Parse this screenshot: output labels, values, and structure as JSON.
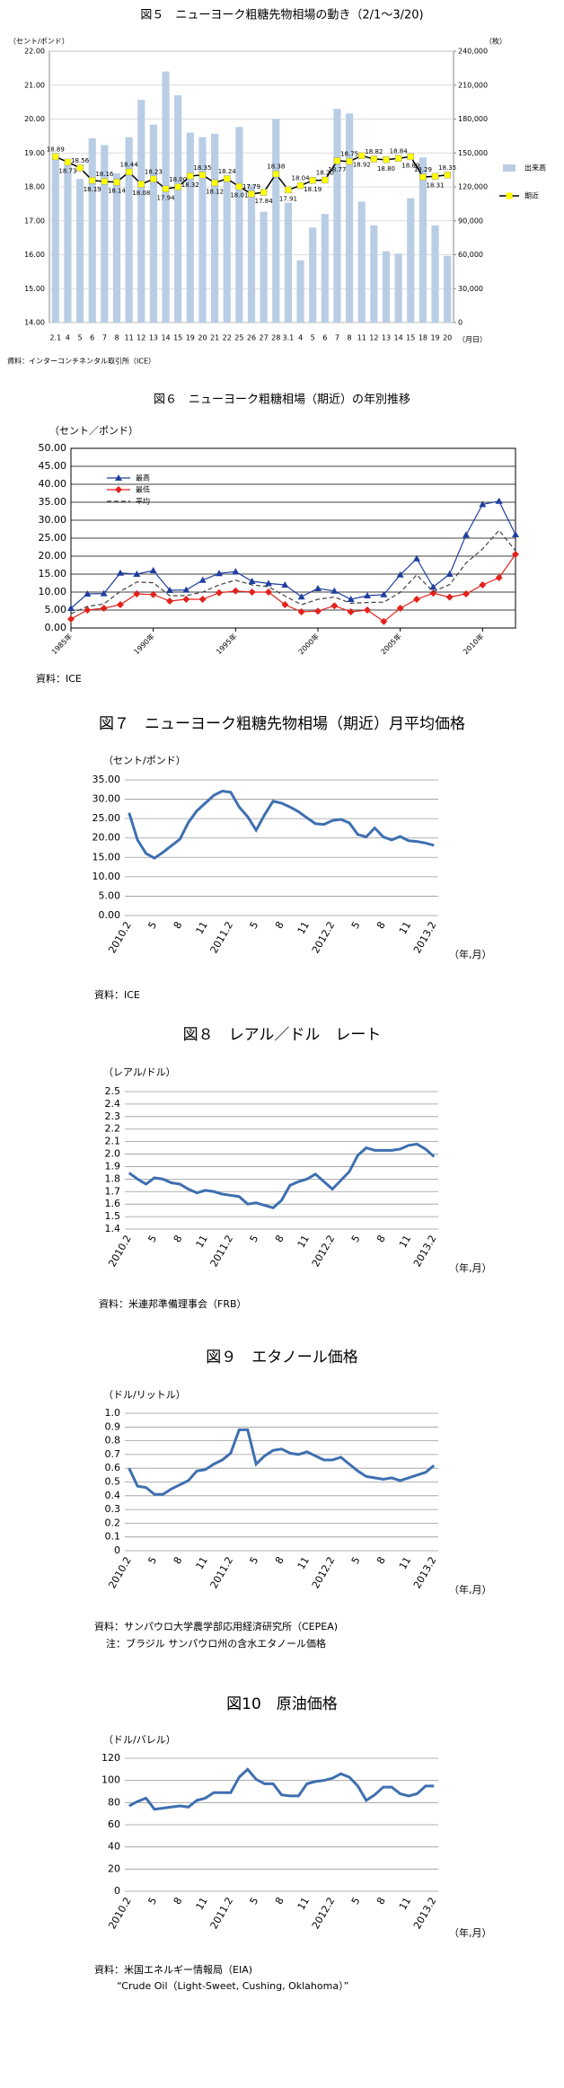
{
  "chart_data": [
    {
      "type": "combo",
      "title": "図５　ニューヨーク粗糖先物相場の動き（2/1～3/20)",
      "y_label": "（セント/ポンド）",
      "y2_label": "（枚）",
      "x_label": "（月日）",
      "categories": [
        "2.1",
        "4",
        "5",
        "6",
        "7",
        "8",
        "11",
        "12",
        "13",
        "14",
        "15",
        "19",
        "20",
        "21",
        "22",
        "25",
        "26",
        "27",
        "28",
        "3.1",
        "4",
        "5",
        "6",
        "7",
        "8",
        "11",
        "12",
        "13",
        "14",
        "15",
        "18",
        "19",
        "20"
      ],
      "series": [
        {
          "name": "出来高",
          "type": "bar",
          "axis": "y2",
          "color": "#b9cde5",
          "values": [
            147000,
            140000,
            127000,
            163000,
            157000,
            132000,
            164000,
            197000,
            175000,
            222000,
            201000,
            168000,
            164000,
            167000,
            127000,
            173000,
            122000,
            98000,
            180000,
            106000,
            55000,
            84000,
            96000,
            189000,
            185000,
            107000,
            86000,
            63000,
            61000,
            110000,
            146000,
            86000,
            59000
          ]
        },
        {
          "name": "期近",
          "type": "line",
          "color": "#000000",
          "marker_color": "#ffff00",
          "values": [
            18.89,
            18.73,
            18.56,
            18.19,
            18.16,
            18.14,
            18.44,
            18.08,
            18.23,
            17.94,
            18.0,
            18.32,
            18.35,
            18.12,
            18.24,
            18.01,
            17.79,
            17.84,
            18.38,
            17.91,
            18.04,
            18.19,
            18.2,
            18.77,
            18.75,
            18.92,
            18.82,
            18.8,
            18.84,
            18.89,
            18.29,
            18.31,
            18.35
          ],
          "value_labels": [
            "18.89",
            "18.73",
            "18.56",
            "18.19",
            "18.16",
            "18.14",
            "18.44",
            "18.08",
            "18.23",
            "17.94",
            "18.00",
            "18.32",
            "18.35",
            "18.12",
            "18.24",
            "18.01",
            "17.79",
            "17.84",
            "18.38",
            "17.91",
            "18.04",
            "18.19",
            "18.20",
            "18.77",
            "18.75",
            "18.92",
            "18.82",
            "18.80",
            "18.84",
            "18.89",
            "18.29",
            "18.31",
            "18.35"
          ]
        }
      ],
      "ylim": [
        14,
        22
      ],
      "yticks": [
        {
          "value": 14,
          "label": "14.00"
        },
        {
          "value": 15,
          "label": "15.00"
        },
        {
          "value": 16,
          "label": "16.00"
        },
        {
          "value": 17,
          "label": "17.00"
        },
        {
          "value": 18,
          "label": "18.00"
        },
        {
          "value": 19,
          "label": "19.00"
        },
        {
          "value": 20,
          "label": "20.00"
        },
        {
          "value": 21,
          "label": "21.00"
        },
        {
          "value": 22,
          "label": "22.00"
        }
      ],
      "y2lim": [
        0,
        240000
      ],
      "y2ticks": [
        0,
        {
          "value": 30000,
          "label": "30,000"
        },
        {
          "value": 60000,
          "label": "60,000"
        },
        {
          "value": 90000,
          "label": "90,000"
        },
        {
          "value": 120000,
          "label": "120,000"
        },
        {
          "value": 150000,
          "label": "150,000"
        },
        {
          "value": 180000,
          "label": "180,000"
        },
        {
          "value": 210000,
          "label": "210,000"
        },
        {
          "value": 240000,
          "label": "240,000"
        }
      ],
      "grid": true,
      "legend": "right",
      "source": "資料：インターコンチネンタル取引所（ICE）"
    },
    {
      "type": "line",
      "title": "図６　ニューヨーク粗糖相場（期近）の年別推移",
      "y_label": "（セント／ポンド）",
      "x": [
        1985,
        1986,
        1987,
        1988,
        1989,
        1990,
        1991,
        1992,
        1993,
        1994,
        1995,
        1996,
        1997,
        1998,
        1999,
        2000,
        2001,
        2002,
        2003,
        2004,
        2005,
        2006,
        2007,
        2008,
        2009,
        2010,
        2011,
        2012
      ],
      "xlim": [
        1985,
        2012
      ],
      "xticks": [
        {
          "value": 1985,
          "label": "1985年"
        },
        {
          "value": 1990,
          "label": "1990年"
        },
        {
          "value": 1995,
          "label": "1995年"
        },
        {
          "value": 2000,
          "label": "2000年"
        },
        {
          "value": 2005,
          "label": "2005年"
        },
        {
          "value": 2010,
          "label": "2010年"
        }
      ],
      "series": [
        {
          "name": "最高",
          "color": "#1f3f9f",
          "marker": "triangle",
          "values": [
            5.5,
            9.5,
            9.6,
            15.3,
            15.0,
            16.0,
            10.5,
            10.6,
            13.3,
            15.2,
            15.7,
            13.0,
            12.4,
            12.0,
            8.7,
            11.0,
            10.3,
            8.0,
            9.0,
            9.3,
            14.8,
            19.3,
            11.4,
            15.0,
            25.9,
            34.4,
            35.3,
            26.0
          ]
        },
        {
          "name": "最低",
          "color": "#e3211c",
          "marker": "diamond",
          "values": [
            2.5,
            5.0,
            5.5,
            6.5,
            9.5,
            9.3,
            7.5,
            8.0,
            8.0,
            9.8,
            10.3,
            10.0,
            10.0,
            6.5,
            4.5,
            4.7,
            6.2,
            4.5,
            5.0,
            1.8,
            5.5,
            8.0,
            9.7,
            8.6,
            9.5,
            12.0,
            14.0,
            20.5
          ]
        },
        {
          "name": "平均",
          "color": "#404040",
          "marker": "none",
          "dash": true,
          "values": [
            4.0,
            6.0,
            6.7,
            10.2,
            12.8,
            12.6,
            9.0,
            9.0,
            10.0,
            12.0,
            13.3,
            12.0,
            11.5,
            8.9,
            6.5,
            8.0,
            8.6,
            6.9,
            7.1,
            7.2,
            9.9,
            14.8,
            10.1,
            12.1,
            18.1,
            22.0,
            27.2,
            21.5
          ]
        }
      ],
      "ylim": [
        0,
        50
      ],
      "yticks": [
        {
          "value": 0,
          "label": "0.00"
        },
        {
          "value": 5,
          "label": "5.00"
        },
        {
          "value": 10,
          "label": "10.00"
        },
        {
          "value": 15,
          "label": "15.00"
        },
        {
          "value": 20,
          "label": "20.00"
        },
        {
          "value": 25,
          "label": "25.00"
        },
        {
          "value": 30,
          "label": "30.00"
        },
        {
          "value": 35,
          "label": "35.00"
        },
        {
          "value": 40,
          "label": "40.00"
        },
        {
          "value": 45,
          "label": "45.00"
        },
        {
          "value": 50,
          "label": "50.00"
        }
      ],
      "grid": true,
      "legend": "upper left",
      "source": "資料：ICE"
    },
    {
      "type": "line",
      "title": "図７　ニューヨーク粗糖先物相場（期近）月平均価格",
      "y_label": "（セント/ポンド）",
      "x_label": "（年,月）",
      "categories": [
        "2010.2",
        null,
        null,
        "5",
        null,
        null,
        "8",
        null,
        null,
        "11",
        null,
        null,
        "2011.2",
        null,
        null,
        "5",
        null,
        null,
        "8",
        null,
        null,
        "11",
        null,
        null,
        "2012.2",
        null,
        null,
        "5",
        null,
        null,
        "8",
        null,
        null,
        "11",
        null,
        null,
        "2013.2"
      ],
      "series": [
        {
          "color": "#3e6fb0",
          "values": [
            26.5,
            19.5,
            16.0,
            14.8,
            16.3,
            18.0,
            19.7,
            24.0,
            27.0,
            29.0,
            31.0,
            32.1,
            31.8,
            28.0,
            25.5,
            22.0,
            26.0,
            29.5,
            29.0,
            28.0,
            26.8,
            25.2,
            23.7,
            23.5,
            24.5,
            24.8,
            23.9,
            20.9,
            20.3,
            22.6,
            20.3,
            19.5,
            20.4,
            19.3,
            19.1,
            18.7,
            18.1
          ]
        }
      ],
      "ylim": [
        0,
        35
      ],
      "yticks": [
        {
          "value": 0,
          "label": "0.00"
        },
        {
          "value": 5,
          "label": "5.00"
        },
        {
          "value": 10,
          "label": "10.00"
        },
        {
          "value": 15,
          "label": "15.00"
        },
        {
          "value": 20,
          "label": "20.00"
        },
        {
          "value": 25,
          "label": "25.00"
        },
        {
          "value": 30,
          "label": "30.00"
        },
        {
          "value": 35,
          "label": "35.00"
        }
      ],
      "grid": true,
      "source": "資料：ICE"
    },
    {
      "type": "line",
      "title": "図８　レアル／ドル　レート",
      "y_label": "（レアル/ドル）",
      "x_label": "（年,月）",
      "categories": [
        "2010.2",
        null,
        null,
        "5",
        null,
        null,
        "8",
        null,
        null,
        "11",
        null,
        null,
        "2011.2",
        null,
        null,
        "5",
        null,
        null,
        "8",
        null,
        null,
        "11",
        null,
        null,
        "2012.2",
        null,
        null,
        "5",
        null,
        null,
        "8",
        null,
        null,
        "11",
        null,
        null,
        "2013.2"
      ],
      "series": [
        {
          "color": "#3e6fb0",
          "values": [
            1.85,
            1.8,
            1.76,
            1.81,
            1.8,
            1.77,
            1.76,
            1.72,
            1.69,
            1.71,
            1.7,
            1.68,
            1.67,
            1.66,
            1.6,
            1.61,
            1.59,
            1.57,
            1.63,
            1.75,
            1.78,
            1.8,
            1.84,
            1.78,
            1.72,
            1.79,
            1.86,
            1.99,
            2.05,
            2.03,
            2.03,
            2.03,
            2.04,
            2.07,
            2.08,
            2.04,
            1.98
          ]
        }
      ],
      "ylim": [
        1.4,
        2.5
      ],
      "yticks": [
        1.4,
        1.5,
        1.6,
        1.7,
        1.8,
        1.9,
        {
          "value": 2,
          "label": "2.0"
        },
        2.1,
        2.2,
        2.3,
        2.4,
        2.5
      ],
      "grid": true,
      "source": "資料：米連邦準備理事会（FRB）"
    },
    {
      "type": "line",
      "title": "図９　エタノール価格",
      "y_label": "（ドル/リットル）",
      "x_label": "（年,月）",
      "categories": [
        "2010.2",
        null,
        null,
        "5",
        null,
        null,
        "8",
        null,
        null,
        "11",
        null,
        null,
        "2011.2",
        null,
        null,
        "5",
        null,
        null,
        "8",
        null,
        null,
        "11",
        null,
        null,
        "2012.2",
        null,
        null,
        "5",
        null,
        null,
        "8",
        null,
        null,
        "11",
        null,
        null,
        "2013.2"
      ],
      "series": [
        {
          "color": "#3e6fb0",
          "values": [
            0.6,
            0.47,
            0.46,
            0.41,
            0.41,
            0.45,
            0.48,
            0.51,
            0.58,
            0.59,
            0.63,
            0.66,
            0.71,
            0.88,
            0.88,
            0.63,
            0.69,
            0.73,
            0.74,
            0.71,
            0.7,
            0.72,
            0.69,
            0.66,
            0.66,
            0.68,
            0.63,
            0.58,
            0.54,
            0.53,
            0.52,
            0.53,
            0.51,
            0.53,
            0.55,
            0.57,
            0.62
          ]
        }
      ],
      "ylim": [
        0,
        1
      ],
      "yticks": [
        0,
        0.1,
        0.2,
        0.3,
        0.4,
        0.5,
        0.6,
        0.7,
        0.8,
        0.9,
        {
          "value": 1,
          "label": "1.0"
        }
      ],
      "grid": true,
      "source": "資料：サンパウロ大学農学部応用経済研究所（CEPEA)",
      "note": "注：ブラジル サンパウロ州の含水エタノール価格"
    },
    {
      "type": "line",
      "title": "図10　原油価格",
      "y_label": "（ドル/バレル）",
      "x_label": "（年,月）",
      "categories": [
        "2010.2",
        null,
        null,
        "5",
        null,
        null,
        "8",
        null,
        null,
        "11",
        null,
        null,
        "2011.2",
        null,
        null,
        "5",
        null,
        null,
        "8",
        null,
        null,
        "11",
        null,
        null,
        "2012.2",
        null,
        null,
        "5",
        null,
        null,
        "8",
        null,
        null,
        "11",
        null,
        null,
        "2013.2"
      ],
      "series": [
        {
          "color": "#3e6fb0",
          "values": [
            77,
            81,
            84,
            74,
            75,
            76,
            77,
            76,
            82,
            84,
            89,
            89,
            89,
            103,
            110,
            101,
            97,
            97,
            87,
            86,
            86,
            97,
            99,
            100,
            102,
            106,
            103,
            95,
            82,
            87,
            94,
            94,
            88,
            86,
            88,
            95,
            95
          ]
        }
      ],
      "ylim": [
        0,
        120
      ],
      "yticks": [
        0,
        20,
        40,
        60,
        80,
        100,
        120
      ],
      "grid": true,
      "source": "資料：米国エネルギー情報局（EIA)",
      "note": "“Crude Oil（Light-Sweet, Cushing, Oklahoma）”"
    }
  ]
}
